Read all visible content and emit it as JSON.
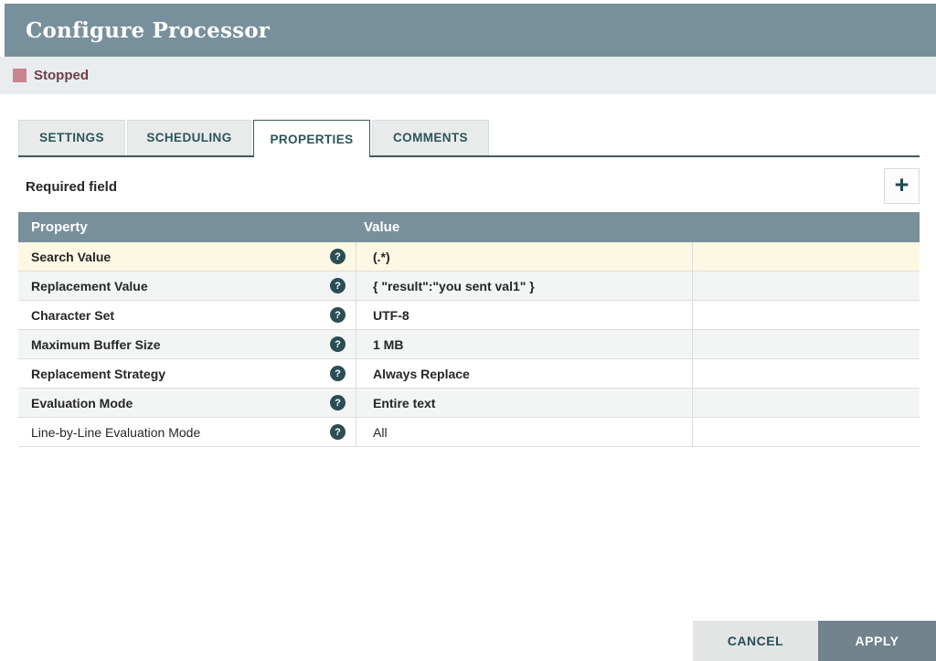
{
  "dialog": {
    "title": "Configure Processor"
  },
  "status": {
    "label": "Stopped"
  },
  "tabs": [
    {
      "label": "SETTINGS",
      "active": false
    },
    {
      "label": "SCHEDULING",
      "active": false
    },
    {
      "label": "PROPERTIES",
      "active": true
    },
    {
      "label": "COMMENTS",
      "active": false
    }
  ],
  "properties_panel": {
    "required_field_label": "Required field",
    "add_button_glyph": "+",
    "help_icon_glyph": "?",
    "table": {
      "columns": [
        "Property",
        "Value"
      ],
      "rows": [
        {
          "property": "Search Value",
          "value": "(.*)",
          "required": true,
          "highlighted": true
        },
        {
          "property": "Replacement Value",
          "value": "{ \"result\":\"you sent val1\" }",
          "required": true,
          "highlighted": false
        },
        {
          "property": "Character Set",
          "value": "UTF-8",
          "required": true,
          "highlighted": false
        },
        {
          "property": "Maximum Buffer Size",
          "value": "1 MB",
          "required": true,
          "highlighted": false
        },
        {
          "property": "Replacement Strategy",
          "value": "Always Replace",
          "required": true,
          "highlighted": false
        },
        {
          "property": "Evaluation Mode",
          "value": "Entire text",
          "required": true,
          "highlighted": false
        },
        {
          "property": "Line-by-Line Evaluation Mode",
          "value": "All",
          "required": false,
          "highlighted": false
        }
      ]
    }
  },
  "footer": {
    "cancel_label": "CANCEL",
    "apply_label": "APPLY"
  },
  "colors": {
    "header_bg": "#78909B",
    "status_square": "#C9858E",
    "status_text": "#6E4049",
    "highlight_row": "#FDF8E3",
    "alt_row": "#F3F5F5",
    "tab_text": "#2A555A",
    "help_icon_bg": "#2B4E54"
  }
}
